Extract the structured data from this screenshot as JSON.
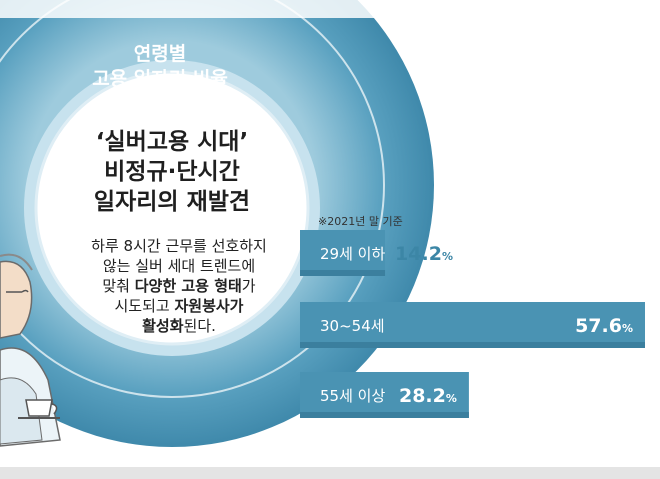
{
  "infographic": {
    "subtitle_line1": "연령별",
    "subtitle_line2": "고용 일자리 비율",
    "headline_line1": "‘실버고용 시대’",
    "headline_line2": "비정규·단시간",
    "headline_line3": "일자리의 재발견",
    "description": {
      "line1": "하루 8시간 근무를 선호하지",
      "line2": "않는 실버 세대 트렌드에",
      "line3_prefix": "맞춰 ",
      "line3_bold": "다양한 고용 형태",
      "line3_suffix": "가",
      "line4_prefix": "시도되고 ",
      "line4_bold": "자원봉사가",
      "line5_bold": "활성화",
      "line5_suffix": "된다."
    },
    "base_note": "※2021년 말 기준"
  },
  "chart_data": {
    "type": "bar",
    "orientation": "horizontal",
    "categories": [
      "29세 이하",
      "30~54세",
      "55세 이상"
    ],
    "values": [
      14.2,
      57.6,
      28.2
    ],
    "value_labels": [
      "14.2",
      "57.6",
      "28.2"
    ],
    "unit": "%",
    "title": "연령별 고용 일자리 비율",
    "note": "※2021년 말 기준",
    "colors": {
      "bar": "#4a93b3",
      "bar_dark": "#3b7f9e",
      "label_on_bar": "#ffffff",
      "label_outside": "#3c86a6"
    }
  },
  "colors": {
    "ring": "#4d97b8",
    "ring_light": "#a9cfe0",
    "inner_circle": "#ffffff",
    "footer": "#e4e4e4"
  }
}
